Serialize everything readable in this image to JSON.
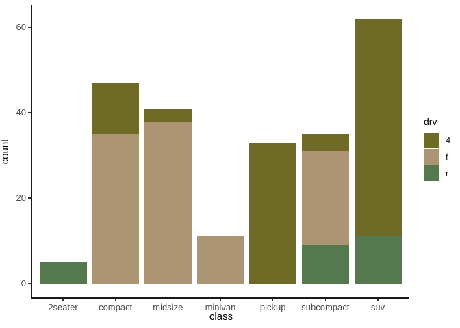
{
  "figure": {
    "background": "#ffffff",
    "axis_line_color": "#1a1a1a",
    "tick_color": "#333333",
    "tick_label_color": "#4d4d4d",
    "axis_title_color": "#000000"
  },
  "chart_data": {
    "type": "bar",
    "stacked": true,
    "title": "",
    "xlabel": "class",
    "ylabel": "count",
    "categories": [
      "2seater",
      "compact",
      "midsize",
      "minivan",
      "pickup",
      "subcompact",
      "suv"
    ],
    "series": [
      {
        "name": "4",
        "color": "#6F6A26",
        "values": [
          0,
          12,
          3,
          0,
          33,
          4,
          51
        ]
      },
      {
        "name": "f",
        "color": "#AC9572",
        "values": [
          0,
          35,
          38,
          11,
          0,
          22,
          0
        ]
      },
      {
        "name": "r",
        "color": "#55784E",
        "values": [
          5,
          0,
          0,
          0,
          0,
          9,
          11
        ]
      }
    ],
    "stack_order_bottom_to_top": [
      "r",
      "f",
      "4"
    ],
    "totals": [
      5,
      47,
      41,
      11,
      33,
      35,
      62
    ],
    "yticks": [
      0,
      20,
      40,
      60
    ],
    "ylim": [
      0,
      65
    ],
    "grid": false,
    "legend": {
      "title": "drv",
      "position": "right",
      "entries": [
        "4",
        "f",
        "r"
      ]
    }
  }
}
